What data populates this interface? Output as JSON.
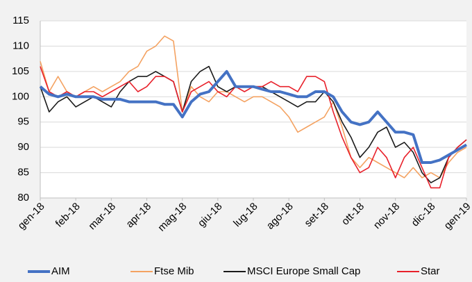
{
  "chart_data": {
    "type": "line",
    "categories": [
      "gen-18",
      null,
      null,
      null,
      "feb-18",
      null,
      null,
      null,
      "mar-18",
      null,
      null,
      null,
      "apr-18",
      null,
      null,
      null,
      "mag-18",
      null,
      null,
      null,
      "giu-18",
      null,
      null,
      null,
      "lug-18",
      null,
      null,
      null,
      "ago-18",
      null,
      null,
      null,
      "set-18",
      null,
      null,
      null,
      "ott-18",
      null,
      null,
      null,
      "nov-18",
      null,
      null,
      null,
      "dic-18",
      null,
      null,
      null,
      "gen-19"
    ],
    "series": [
      {
        "name": "AIM",
        "color": "#4472c4",
        "values": [
          102,
          100.5,
          100,
          100.5,
          100,
          100,
          100,
          99.5,
          99.5,
          99.5,
          99,
          99,
          99,
          99,
          98.5,
          98.5,
          96,
          99,
          100.5,
          101,
          103,
          105,
          102,
          102,
          102,
          101.5,
          101,
          101,
          100.5,
          100,
          100,
          101,
          101,
          100,
          97,
          95,
          94.5,
          95,
          97,
          95,
          93,
          93,
          92.5,
          87,
          87,
          87.5,
          88.5,
          89.5,
          90.5
        ]
      },
      {
        "name": "Ftse Mib",
        "color": "#f4a261",
        "values": [
          107,
          101,
          104,
          101,
          100,
          101,
          102,
          101,
          102,
          103,
          105,
          106,
          109,
          110,
          112,
          111,
          97,
          102,
          100,
          99,
          101,
          101,
          100,
          99,
          100,
          100,
          99,
          98,
          96,
          93,
          94,
          95,
          96,
          99,
          94,
          88,
          86,
          88,
          87,
          86,
          85,
          84,
          86,
          84,
          85,
          84,
          87,
          89,
          90
        ]
      },
      {
        "name": "MSCI Europe Small Cap",
        "color": "#1a1a1a",
        "values": [
          102,
          97,
          99,
          100,
          98,
          99,
          100,
          99,
          98,
          101,
          103,
          104,
          104,
          105,
          104,
          103,
          97,
          103,
          105,
          106,
          102,
          101,
          102,
          102,
          102,
          102,
          101,
          100,
          99,
          98,
          99,
          99,
          101,
          99,
          95,
          92,
          88,
          90,
          93,
          94,
          90,
          91,
          89,
          85,
          83,
          84,
          88,
          90,
          91.5
        ]
      },
      {
        "name": "Star",
        "color": "#e8202a",
        "values": [
          106,
          101,
          100,
          101,
          100,
          101,
          101,
          100,
          101,
          102,
          103,
          101,
          102,
          104,
          104,
          103,
          97,
          101,
          102,
          103,
          101,
          100,
          102,
          101,
          102,
          102,
          103,
          102,
          102,
          101,
          104,
          104,
          103,
          97,
          92,
          88,
          85,
          86,
          90,
          88,
          84,
          88,
          90,
          86,
          82,
          82,
          88,
          90,
          91.5
        ]
      }
    ],
    "ylim": [
      80,
      115
    ],
    "yticks": [
      80,
      85,
      90,
      95,
      100,
      105,
      110,
      115
    ],
    "grid": true
  }
}
